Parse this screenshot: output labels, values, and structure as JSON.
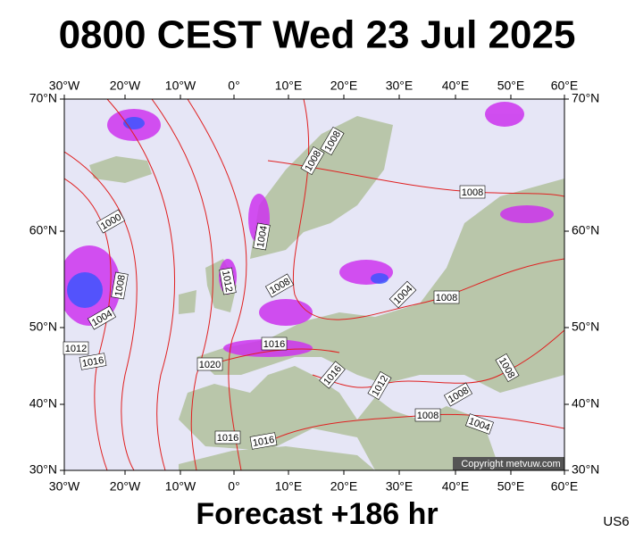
{
  "header": {
    "title": "0800 CEST Wed 23 Jul 2025"
  },
  "axes": {
    "top": [
      "30°W",
      "20°W",
      "10°W",
      "0°",
      "10°E",
      "20°E",
      "30°E",
      "40°E",
      "50°E",
      "60°E"
    ],
    "bottom": [
      "30°W",
      "20°W",
      "10°W",
      "0°",
      "10°E",
      "20°E",
      "30°E",
      "40°E",
      "50°E",
      "60°E"
    ],
    "left": [
      "70°N",
      "60°N",
      "50°N",
      "40°N",
      "30°N"
    ],
    "right": [
      "70°N",
      "60°N",
      "50°N",
      "40°N",
      "30°N"
    ]
  },
  "isobar_labels": [
    "1008",
    "1008",
    "1008",
    "1000",
    "1004",
    "1012",
    "1008",
    "1008",
    "1004",
    "1004",
    "1008",
    "1012",
    "1016",
    "1016",
    "1020",
    "1016",
    "1012",
    "1008",
    "1008",
    "1008",
    "1004",
    "1016",
    "1016"
  ],
  "credit": "Copyright metvuw.com",
  "footer": {
    "forecast": "Forecast +186 hr",
    "model": "US6"
  }
}
